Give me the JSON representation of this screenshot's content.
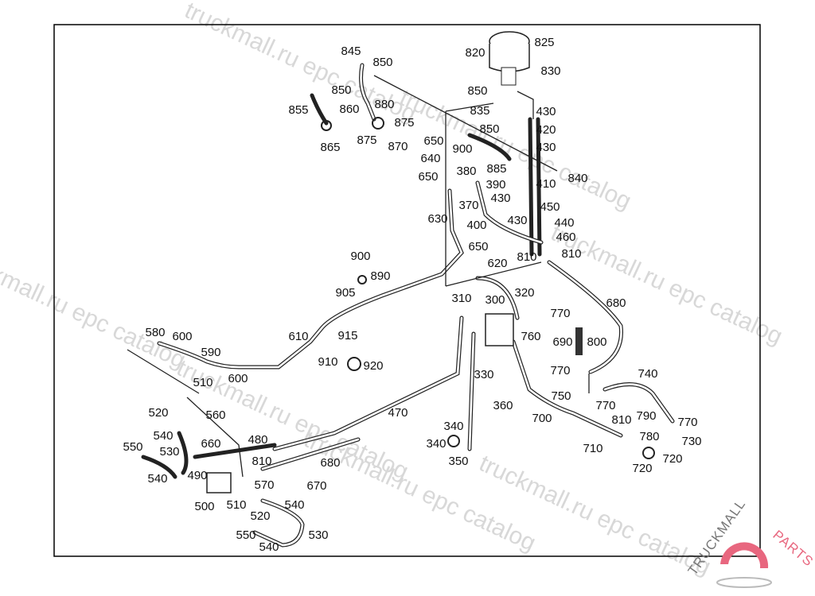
{
  "watermark": "truckmall.ru epc catalog",
  "logo": {
    "text_dark": "TRUCKMALL",
    "text_accent": "PARTS",
    "accent_color": "#e8677f",
    "dark_color": "#777777"
  },
  "labels": [
    "845",
    "850",
    "850",
    "855",
    "860",
    "880",
    "875",
    "875",
    "870",
    "865",
    "820",
    "825",
    "830",
    "850",
    "835",
    "430",
    "850",
    "420",
    "430",
    "650",
    "900",
    "640",
    "380",
    "885",
    "840",
    "650",
    "390",
    "410",
    "430",
    "370",
    "450",
    "630",
    "400",
    "430",
    "440",
    "460",
    "650",
    "620",
    "810",
    "810",
    "900",
    "890",
    "905",
    "310",
    "300",
    "320",
    "680",
    "770",
    "610",
    "915",
    "580",
    "600",
    "590",
    "760",
    "690",
    "800",
    "910",
    "920",
    "600",
    "770",
    "740",
    "330",
    "510",
    "750",
    "770",
    "520",
    "560",
    "470",
    "360",
    "700",
    "810",
    "790",
    "770",
    "540",
    "340",
    "780",
    "730",
    "550",
    "530",
    "660",
    "480",
    "340",
    "710",
    "720",
    "350",
    "810",
    "680",
    "720",
    "540",
    "490",
    "570",
    "670",
    "500",
    "510",
    "540",
    "520",
    "530",
    "550",
    "540"
  ]
}
